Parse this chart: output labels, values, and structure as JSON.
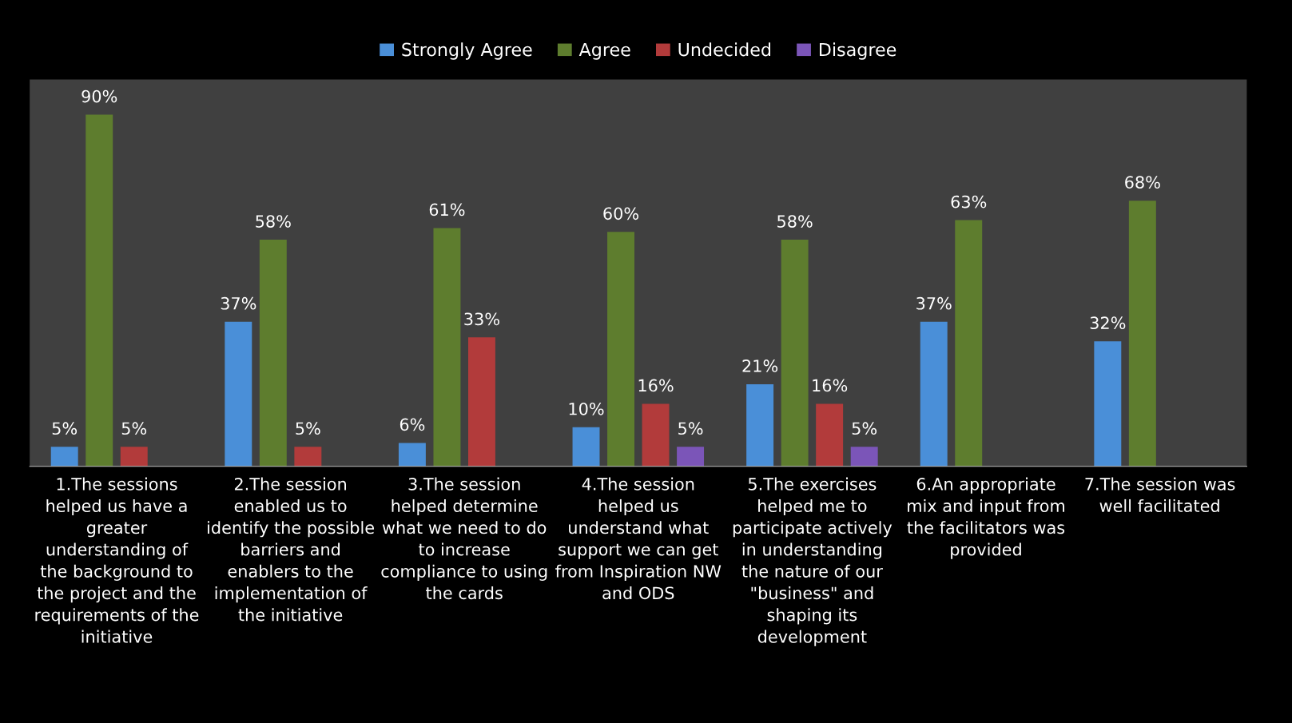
{
  "chart_data": {
    "type": "bar",
    "categories": [
      "1.The sessions\nhelped us have a\ngreater\nunderstanding of\nthe background to\nthe project and the\nrequirements of the\ninitiative",
      "2.The session\nenabled us to\nidentify the possible\nbarriers and\nenablers to the\nimplementation of\nthe initiative",
      "3.The session\nhelped determine\nwhat we need to do\nto increase\ncompliance to using\nthe cards",
      "4.The session\nhelped us\nunderstand what\nsupport we can get\nfrom Inspiration NW\nand ODS",
      "5.The exercises\nhelped me to\nparticipate actively\nin understanding\nthe nature of our\n\"business\" and\nshaping its\ndevelopment",
      "6.An appropriate\nmix and input from\nthe facilitators was\nprovided",
      "7.The session was\nwell facilitated"
    ],
    "series": [
      {
        "name": "Strongly Agree",
        "color": "#4a8fd8",
        "values": [
          5,
          37,
          6,
          10,
          21,
          37,
          32
        ],
        "value_labels": [
          "5%",
          "37%",
          "6%",
          "10%",
          "21%",
          "37%",
          "32%"
        ]
      },
      {
        "name": "Agree",
        "color": "#5e7d2e",
        "values": [
          90,
          58,
          61,
          60,
          58,
          63,
          68
        ],
        "value_labels": [
          "90%",
          "58%",
          "61%",
          "60%",
          "58%",
          "63%",
          "68%"
        ]
      },
      {
        "name": "Undecided",
        "color": "#b23b3b",
        "values": [
          5,
          5,
          33,
          16,
          16,
          null,
          null
        ],
        "value_labels": [
          "5%",
          "5%",
          "33%",
          "16%",
          "16%",
          null,
          null
        ]
      },
      {
        "name": "Disagree",
        "color": "#7b55b8",
        "values": [
          null,
          null,
          null,
          5,
          5,
          null,
          null
        ],
        "value_labels": [
          null,
          null,
          null,
          "5%",
          "5%",
          null,
          null
        ]
      }
    ],
    "legend": "top"
  }
}
